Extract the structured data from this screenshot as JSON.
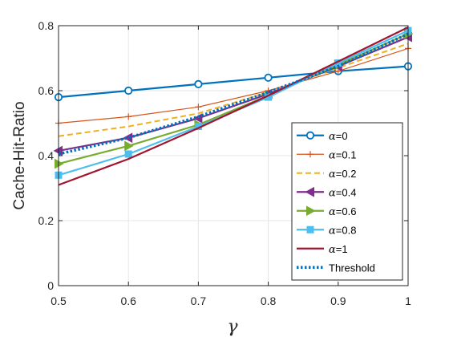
{
  "chart_data": {
    "type": "line",
    "xlabel": "γ",
    "ylabel": "Cache-Hit-Ratio",
    "x": [
      0.5,
      0.6,
      0.7,
      0.8,
      0.9,
      1.0
    ],
    "xlim": [
      0.5,
      1.0
    ],
    "ylim": [
      0,
      0.8
    ],
    "xticks": [
      "0.5",
      "0.6",
      "0.7",
      "0.8",
      "0.9",
      "1"
    ],
    "yticks": [
      "0",
      "0.2",
      "0.4",
      "0.6",
      "0.8"
    ],
    "grid": true,
    "legend_position": "lower-right",
    "series": [
      {
        "name": "α=0",
        "symbol": "α",
        "suffix": "=0",
        "color": "#0072BD",
        "marker": "circle",
        "dash": "solid",
        "width": 2.2,
        "values": [
          0.58,
          0.6,
          0.62,
          0.64,
          0.66,
          0.675
        ]
      },
      {
        "name": "α=0.1",
        "symbol": "α",
        "suffix": "=0.1",
        "color": "#D95319",
        "marker": "plus",
        "dash": "solid",
        "width": 1.2,
        "values": [
          0.5,
          0.52,
          0.55,
          0.6,
          0.66,
          0.73
        ]
      },
      {
        "name": "α=0.2",
        "symbol": "α",
        "suffix": "=0.2",
        "color": "#EDB120",
        "marker": "none",
        "dash": "dashed",
        "width": 2.0,
        "values": [
          0.46,
          0.49,
          0.53,
          0.595,
          0.67,
          0.745
        ]
      },
      {
        "name": "α=0.4",
        "symbol": "α",
        "suffix": "=0.4",
        "color": "#7E2F8E",
        "marker": "triangle-left",
        "dash": "solid",
        "width": 2.2,
        "values": [
          0.415,
          0.455,
          0.515,
          0.59,
          0.675,
          0.765
        ]
      },
      {
        "name": "α=0.6",
        "symbol": "α",
        "suffix": "=0.6",
        "color": "#77AC30",
        "marker": "triangle-right",
        "dash": "solid",
        "width": 2.2,
        "values": [
          0.375,
          0.43,
          0.495,
          0.585,
          0.68,
          0.775
        ]
      },
      {
        "name": "α=0.8",
        "symbol": "α",
        "suffix": "=0.8",
        "color": "#4DBEEE",
        "marker": "square",
        "dash": "solid",
        "width": 2.2,
        "values": [
          0.34,
          0.405,
          0.49,
          0.58,
          0.685,
          0.785
        ]
      },
      {
        "name": "α=1",
        "symbol": "α",
        "suffix": "=1",
        "color": "#A2142F",
        "marker": "none",
        "dash": "solid",
        "width": 2.2,
        "values": [
          0.31,
          0.39,
          0.485,
          0.585,
          0.69,
          0.795
        ]
      },
      {
        "name": "Threshold",
        "symbol": "",
        "suffix": "Threshold",
        "color": "#0072BD",
        "marker": "none",
        "dash": "dotted",
        "width": 3.5,
        "values": [
          0.405,
          0.455,
          0.52,
          0.595,
          0.675,
          0.775
        ]
      }
    ]
  }
}
